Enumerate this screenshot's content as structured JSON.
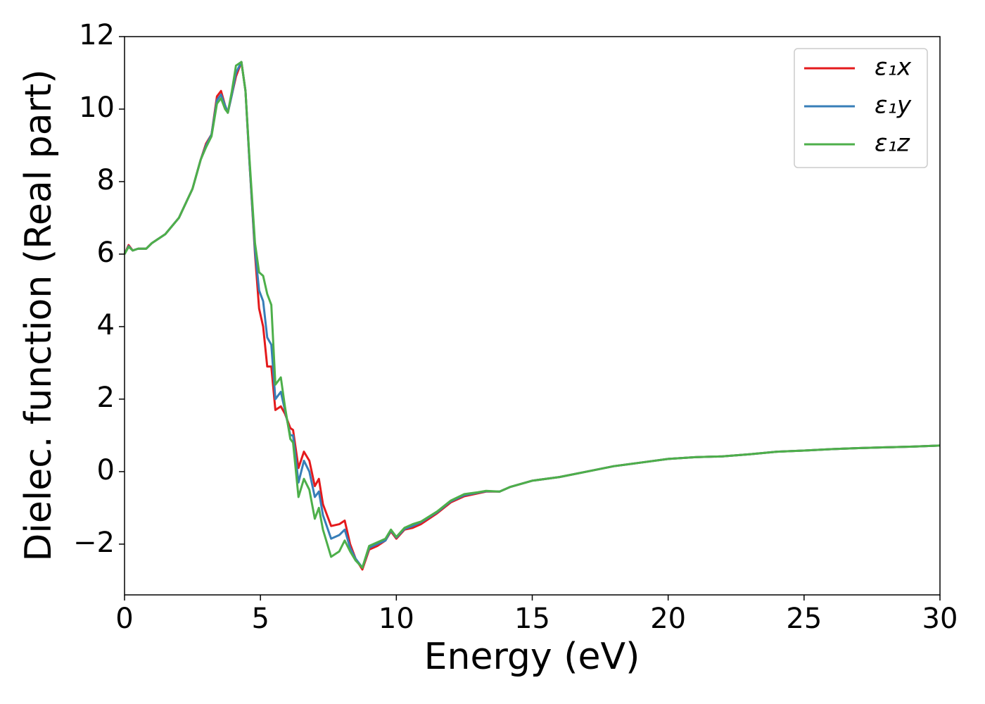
{
  "chart_data": {
    "type": "line",
    "xlabel": "Energy (eV)",
    "ylabel": "Dielec. function (Real part)",
    "x": [
      0,
      0.15,
      0.3,
      0.5,
      0.8,
      1.0,
      1.5,
      2.0,
      2.5,
      2.8,
      3.0,
      3.2,
      3.4,
      3.55,
      3.7,
      3.8,
      3.95,
      4.1,
      4.3,
      4.45,
      4.6,
      4.8,
      4.95,
      5.1,
      5.25,
      5.4,
      5.55,
      5.75,
      5.9,
      6.1,
      6.2,
      6.4,
      6.6,
      6.8,
      7.0,
      7.15,
      7.3,
      7.6,
      7.9,
      8.1,
      8.3,
      8.5,
      8.75,
      9.0,
      9.3,
      9.6,
      9.8,
      10.0,
      10.3,
      10.6,
      10.9,
      11.5,
      12.0,
      12.5,
      13.0,
      13.3,
      13.8,
      14.2,
      15,
      16,
      17,
      18,
      19,
      20,
      21,
      22,
      23,
      24,
      25,
      26,
      27,
      28,
      29,
      30
    ],
    "series": [
      {
        "name": "ε₁x",
        "color": "#e41a1c",
        "values": [
          6.0,
          6.25,
          6.1,
          6.15,
          6.15,
          6.3,
          6.55,
          7.0,
          7.8,
          8.6,
          9.05,
          9.3,
          10.35,
          10.5,
          10.1,
          9.9,
          10.4,
          10.9,
          11.3,
          10.5,
          8.5,
          6.0,
          4.5,
          4.0,
          2.9,
          2.9,
          1.7,
          1.8,
          1.6,
          1.2,
          1.15,
          0.1,
          0.55,
          0.3,
          -0.4,
          -0.2,
          -0.9,
          -1.5,
          -1.45,
          -1.35,
          -2.0,
          -2.4,
          -2.7,
          -2.15,
          -2.05,
          -1.9,
          -1.65,
          -1.85,
          -1.6,
          -1.55,
          -1.45,
          -1.15,
          -0.85,
          -0.68,
          -0.6,
          -0.55,
          -0.55,
          -0.42,
          -0.25,
          -0.15,
          0.0,
          0.15,
          0.25,
          0.35,
          0.4,
          0.42,
          0.48,
          0.55,
          0.58,
          0.62,
          0.65,
          0.67,
          0.69,
          0.72
        ]
      },
      {
        "name": "ε₁y",
        "color": "#377eb8",
        "values": [
          6.0,
          6.22,
          6.1,
          6.15,
          6.15,
          6.3,
          6.55,
          7.0,
          7.8,
          8.6,
          9.0,
          9.3,
          10.25,
          10.4,
          10.1,
          9.9,
          10.4,
          11.0,
          11.3,
          10.5,
          8.5,
          6.1,
          5.0,
          4.7,
          3.7,
          3.5,
          2.0,
          2.2,
          1.7,
          1.0,
          1.0,
          -0.3,
          0.3,
          0.0,
          -0.7,
          -0.55,
          -1.2,
          -1.85,
          -1.75,
          -1.6,
          -2.1,
          -2.4,
          -2.65,
          -2.1,
          -2.0,
          -1.9,
          -1.62,
          -1.82,
          -1.58,
          -1.5,
          -1.4,
          -1.12,
          -0.82,
          -0.65,
          -0.58,
          -0.54,
          -0.55,
          -0.42,
          -0.25,
          -0.15,
          0.0,
          0.15,
          0.25,
          0.35,
          0.4,
          0.42,
          0.48,
          0.55,
          0.58,
          0.62,
          0.65,
          0.67,
          0.69,
          0.72
        ]
      },
      {
        "name": "ε₁z",
        "color": "#4daf4a",
        "values": [
          6.0,
          6.2,
          6.1,
          6.15,
          6.15,
          6.3,
          6.55,
          7.0,
          7.8,
          8.6,
          8.95,
          9.25,
          10.15,
          10.3,
          10.0,
          9.9,
          10.5,
          11.2,
          11.3,
          10.5,
          8.6,
          6.3,
          5.5,
          5.4,
          4.9,
          4.6,
          2.4,
          2.6,
          1.8,
          0.9,
          0.8,
          -0.7,
          -0.2,
          -0.5,
          -1.3,
          -1.0,
          -1.6,
          -2.35,
          -2.2,
          -1.9,
          -2.2,
          -2.45,
          -2.65,
          -2.05,
          -1.95,
          -1.85,
          -1.6,
          -1.8,
          -1.55,
          -1.45,
          -1.38,
          -1.1,
          -0.8,
          -0.62,
          -0.57,
          -0.53,
          -0.55,
          -0.42,
          -0.25,
          -0.15,
          0.0,
          0.15,
          0.25,
          0.35,
          0.4,
          0.42,
          0.48,
          0.55,
          0.58,
          0.62,
          0.65,
          0.67,
          0.69,
          0.72
        ]
      }
    ],
    "xlim": [
      0,
      30
    ],
    "xticks": [
      0,
      5,
      10,
      15,
      20,
      25,
      30
    ],
    "ylim": [
      -3.4,
      12
    ],
    "yticks": [
      {
        "value": -2,
        "label": "−2"
      },
      0,
      2,
      4,
      6,
      8,
      10,
      12
    ],
    "legend": "upper right"
  }
}
